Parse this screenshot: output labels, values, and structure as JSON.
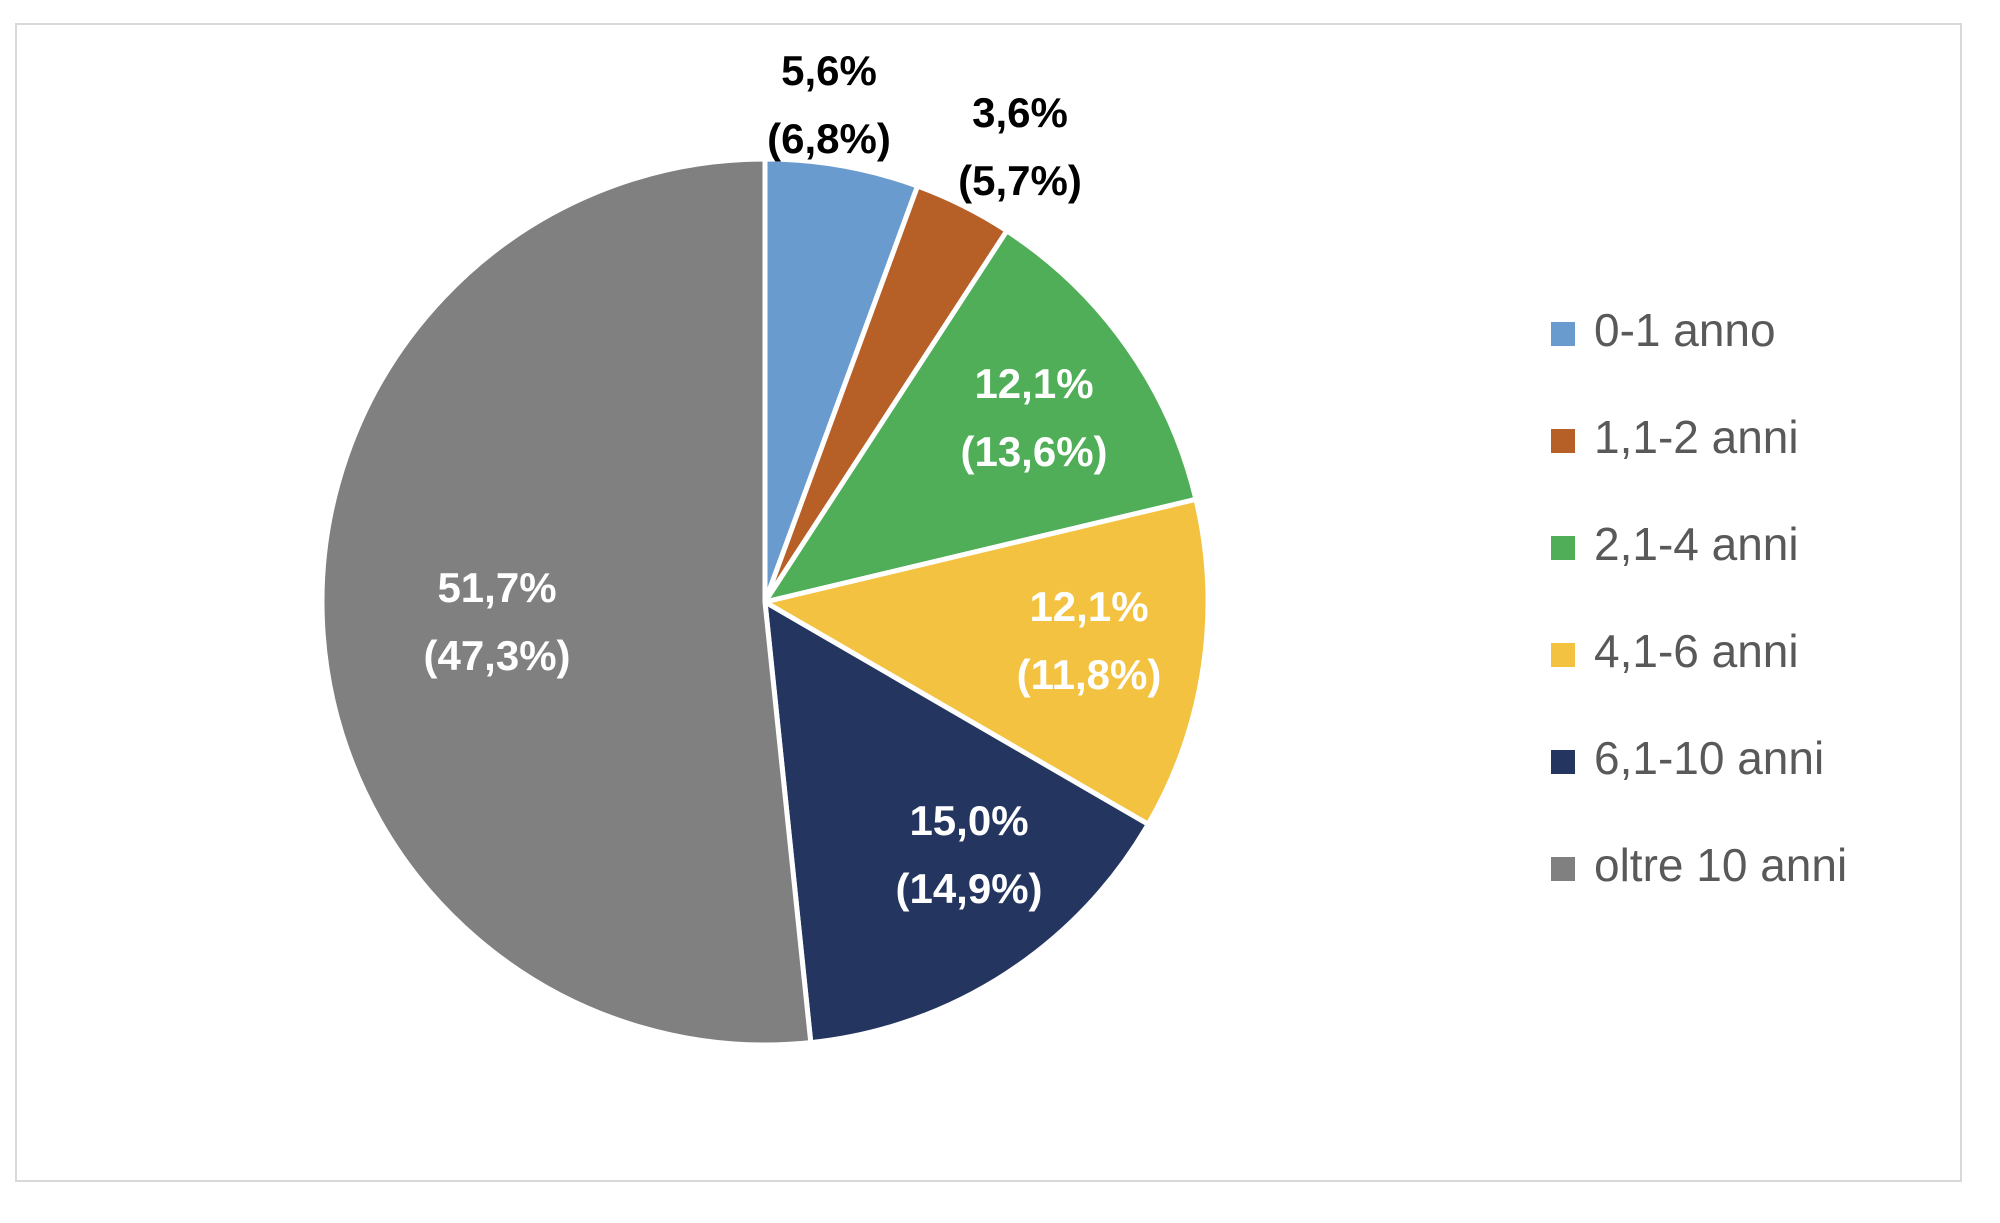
{
  "chart_data": {
    "type": "pie",
    "title": "",
    "legend_position": "right",
    "start_angle": "top, clockwise",
    "categories": [
      "0-1 anno",
      "1,1-2 anni",
      "2,1-4 anni",
      "4,1-6 anni",
      "6,1-10 anni",
      "oltre 10 anni"
    ],
    "values": [
      5.6,
      3.6,
      12.1,
      12.1,
      15.0,
      51.7
    ],
    "secondary_values": [
      6.8,
      5.7,
      13.6,
      11.8,
      14.9,
      47.3
    ],
    "labels": [
      {
        "main": "5,6%",
        "secondary": "(6,8%)"
      },
      {
        "main": "3,6%",
        "secondary": "(5,7%)"
      },
      {
        "main": "12,1%",
        "secondary": "(13,6%)"
      },
      {
        "main": "12,1%",
        "secondary": "(11,8%)"
      },
      {
        "main": "15,0%",
        "secondary": "(14,9%)"
      },
      {
        "main": "51,7%",
        "secondary": "(47,3%)"
      }
    ],
    "colors": [
      "#6A9BCF",
      "#B65F27",
      "#4FAE57",
      "#F2C240",
      "#243660",
      "#808080"
    ],
    "label_colors": [
      "#000000",
      "#000000",
      "#ffffff",
      "#ffffff",
      "#ffffff",
      "#ffffff"
    ]
  }
}
